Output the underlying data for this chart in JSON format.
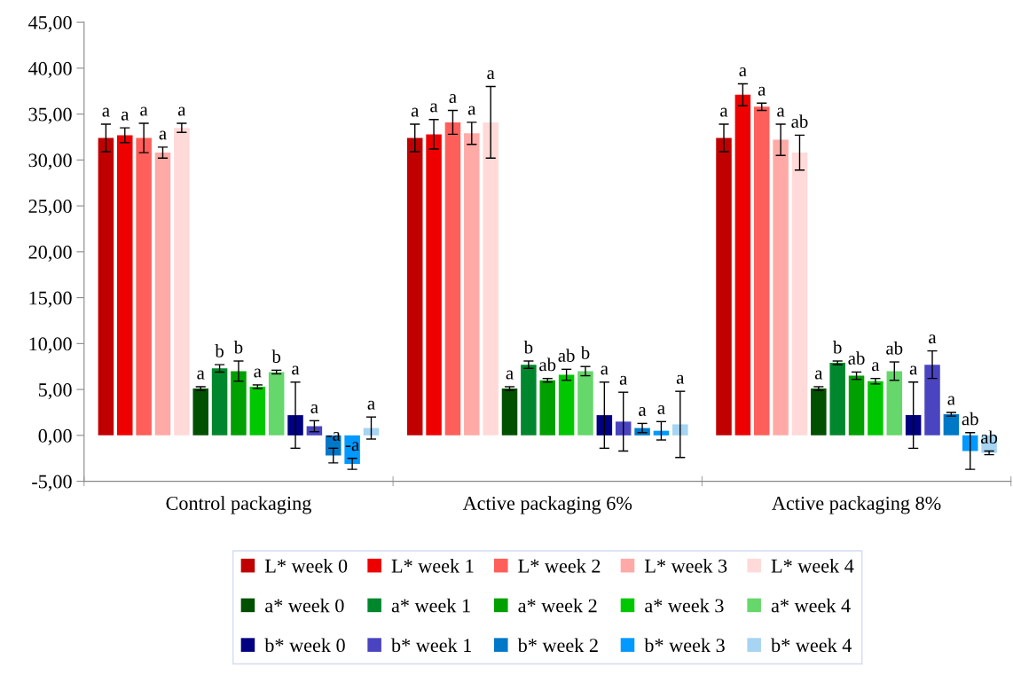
{
  "chart_data": {
    "type": "bar",
    "categories": [
      "Control packaging",
      "Active packaging 6%",
      "Active packaging 8%"
    ],
    "ylim": [
      -5,
      45
    ],
    "yticks": [
      {
        "value": -5,
        "label": "-5,00"
      },
      {
        "value": 0,
        "label": "0,00"
      },
      {
        "value": 5,
        "label": "5,00"
      },
      {
        "value": 10,
        "label": "10,00"
      },
      {
        "value": 15,
        "label": "15,00"
      },
      {
        "value": 20,
        "label": "20,00"
      },
      {
        "value": 25,
        "label": "25,00"
      },
      {
        "value": 30,
        "label": "30,00"
      },
      {
        "value": 35,
        "label": "35,00"
      },
      {
        "value": 40,
        "label": "40,00"
      },
      {
        "value": 45,
        "label": "45,00"
      }
    ],
    "grid": false,
    "legend": "bottom",
    "series": [
      {
        "name": "L* week 0",
        "color": "#c00000",
        "values": [
          32.4,
          32.4,
          32.4
        ],
        "errors": [
          1.5,
          1.5,
          1.5
        ],
        "value_labels": [
          "a",
          "a",
          "a"
        ]
      },
      {
        "name": "L* week 1",
        "color": "#ee0000",
        "values": [
          32.7,
          32.8,
          37.1
        ],
        "errors": [
          0.8,
          1.6,
          1.2
        ],
        "value_labels": [
          "a",
          "a",
          "a"
        ]
      },
      {
        "name": "L* week 2",
        "color": "#ff5f5a",
        "values": [
          32.4,
          34.1,
          35.8
        ],
        "errors": [
          1.6,
          1.3,
          0.4
        ],
        "value_labels": [
          "a",
          "a",
          "a"
        ]
      },
      {
        "name": "L* week 3",
        "color": "#ffaaa6",
        "values": [
          30.8,
          32.9,
          32.2
        ],
        "errors": [
          0.6,
          1.2,
          1.7
        ],
        "value_labels": [
          "a",
          "a",
          "a"
        ]
      },
      {
        "name": "L* week 4",
        "color": "#ffdad8",
        "values": [
          33.5,
          34.1,
          30.8
        ],
        "errors": [
          0.5,
          3.9,
          1.9
        ],
        "value_labels": [
          "a",
          "a",
          "ab"
        ]
      },
      {
        "name": "a* week 0",
        "color": "#005000",
        "values": [
          5.1,
          5.1,
          5.1
        ],
        "errors": [
          0.2,
          0.2,
          0.2
        ],
        "value_labels": [
          "a",
          "a",
          "a"
        ]
      },
      {
        "name": "a* week 1",
        "color": "#00872d",
        "values": [
          7.3,
          7.7,
          7.9
        ],
        "errors": [
          0.4,
          0.4,
          0.2
        ],
        "value_labels": [
          "b",
          "b",
          "b"
        ]
      },
      {
        "name": "a* week 2",
        "color": "#00a000",
        "values": [
          7.0,
          6.0,
          6.5
        ],
        "errors": [
          1.1,
          0.2,
          0.4
        ],
        "value_labels": [
          "b",
          "ab",
          "ab"
        ]
      },
      {
        "name": "a* week 3",
        "color": "#00c800",
        "values": [
          5.3,
          6.6,
          5.9
        ],
        "errors": [
          0.2,
          0.6,
          0.3
        ],
        "value_labels": [
          "a",
          "ab",
          "a"
        ]
      },
      {
        "name": "a* week 4",
        "color": "#66d76a",
        "values": [
          6.9,
          7.0,
          7.0
        ],
        "errors": [
          0.2,
          0.5,
          1.0
        ],
        "value_labels": [
          "b",
          "b",
          "ab"
        ]
      },
      {
        "name": "b* week 0",
        "color": "#000080",
        "values": [
          2.2,
          2.2,
          2.2
        ],
        "errors": [
          3.6,
          3.6,
          3.6
        ],
        "value_labels": [
          "a",
          "a",
          "a"
        ]
      },
      {
        "name": "b* week 1",
        "color": "#4a44c0",
        "values": [
          1.0,
          1.5,
          7.7
        ],
        "errors": [
          0.6,
          3.2,
          1.5
        ],
        "value_labels": [
          "a",
          "a",
          "a"
        ]
      },
      {
        "name": "b* week 2",
        "color": "#0078c8",
        "values": [
          -2.2,
          0.8,
          2.3
        ],
        "errors": [
          0.8,
          0.5,
          0.2
        ],
        "value_labels": [
          "-a",
          "a",
          "a"
        ]
      },
      {
        "name": "b* week 3",
        "color": "#0099ff",
        "values": [
          -3.1,
          0.5,
          -1.7
        ],
        "errors": [
          0.6,
          1.0,
          2.0
        ],
        "value_labels": [
          "-a",
          "a",
          "ab"
        ]
      },
      {
        "name": "b* week 4",
        "color": "#a6d4f2",
        "values": [
          0.8,
          1.2,
          -1.9
        ],
        "errors": [
          1.2,
          3.6,
          0.2
        ],
        "value_labels": [
          "a",
          "a",
          "ab"
        ]
      }
    ]
  }
}
